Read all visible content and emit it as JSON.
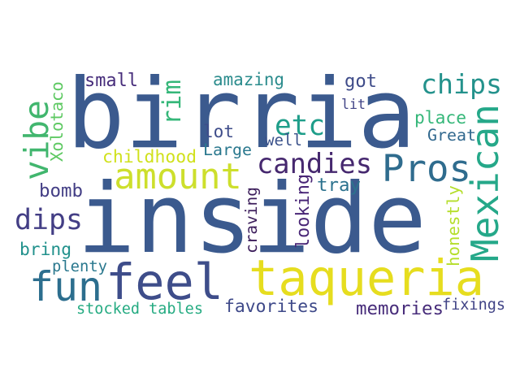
{
  "words": [
    {
      "id": "birria",
      "text": "birria",
      "color": "#3b5a8e"
    },
    {
      "id": "inside",
      "text": "inside",
      "color": "#3b5a8e"
    },
    {
      "id": "taqueria",
      "text": "taqueria",
      "color": "#e6dd1f"
    },
    {
      "id": "feel",
      "text": "feel",
      "color": "#3e4d8a"
    },
    {
      "id": "fun",
      "text": "fun",
      "color": "#2c6e8e"
    },
    {
      "id": "amount",
      "text": "amount",
      "color": "#cddf2c"
    },
    {
      "id": "vibe",
      "text": "vibe",
      "color": "#41b66e"
    },
    {
      "id": "mexican",
      "text": "Mexican",
      "color": "#25a889"
    },
    {
      "id": "pros",
      "text": "Pros",
      "color": "#2f6c8e"
    },
    {
      "id": "chips",
      "text": "chips",
      "color": "#24928c"
    },
    {
      "id": "candies",
      "text": "candies",
      "color": "#46286f"
    },
    {
      "id": "etc",
      "text": "etc",
      "color": "#1f9e8a"
    },
    {
      "id": "rim",
      "text": "rim",
      "color": "#35b779"
    },
    {
      "id": "dips",
      "text": "dips",
      "color": "#433e85"
    },
    {
      "id": "small",
      "text": "small",
      "color": "#472d7b"
    },
    {
      "id": "amazing",
      "text": "amazing",
      "color": "#2b8c8d"
    },
    {
      "id": "got",
      "text": "got",
      "color": "#3e4b89"
    },
    {
      "id": "lit",
      "text": "lit",
      "color": "#414487"
    },
    {
      "id": "place",
      "text": "place",
      "color": "#35b779"
    },
    {
      "id": "great",
      "text": "Great",
      "color": "#31688e"
    },
    {
      "id": "lot",
      "text": "lot",
      "color": "#3e4c8a"
    },
    {
      "id": "well",
      "text": "well",
      "color": "#3b528b"
    },
    {
      "id": "large",
      "text": "Large",
      "color": "#2a788e"
    },
    {
      "id": "childhood",
      "text": "childhood",
      "color": "#d0e11c"
    },
    {
      "id": "xolotaco",
      "text": "Xolotaco",
      "color": "#5ec962"
    },
    {
      "id": "bomb",
      "text": "bomb",
      "color": "#433e85"
    },
    {
      "id": "tray",
      "text": "tray",
      "color": "#2c728e"
    },
    {
      "id": "looking",
      "text": "looking",
      "color": "#482576"
    },
    {
      "id": "craving",
      "text": "craving",
      "color": "#3b1c5a"
    },
    {
      "id": "honestly",
      "text": "honestly",
      "color": "#b5de2b"
    },
    {
      "id": "bring",
      "text": "bring",
      "color": "#21918c"
    },
    {
      "id": "plenty",
      "text": "plenty",
      "color": "#2a788e"
    },
    {
      "id": "stocked-tables",
      "text": "stocked tables",
      "color": "#25ab82"
    },
    {
      "id": "favorites",
      "text": "favorites",
      "color": "#3e4989"
    },
    {
      "id": "memories",
      "text": "memories",
      "color": "#472c7a"
    },
    {
      "id": "fixings",
      "text": "fixings",
      "color": "#414487"
    }
  ]
}
